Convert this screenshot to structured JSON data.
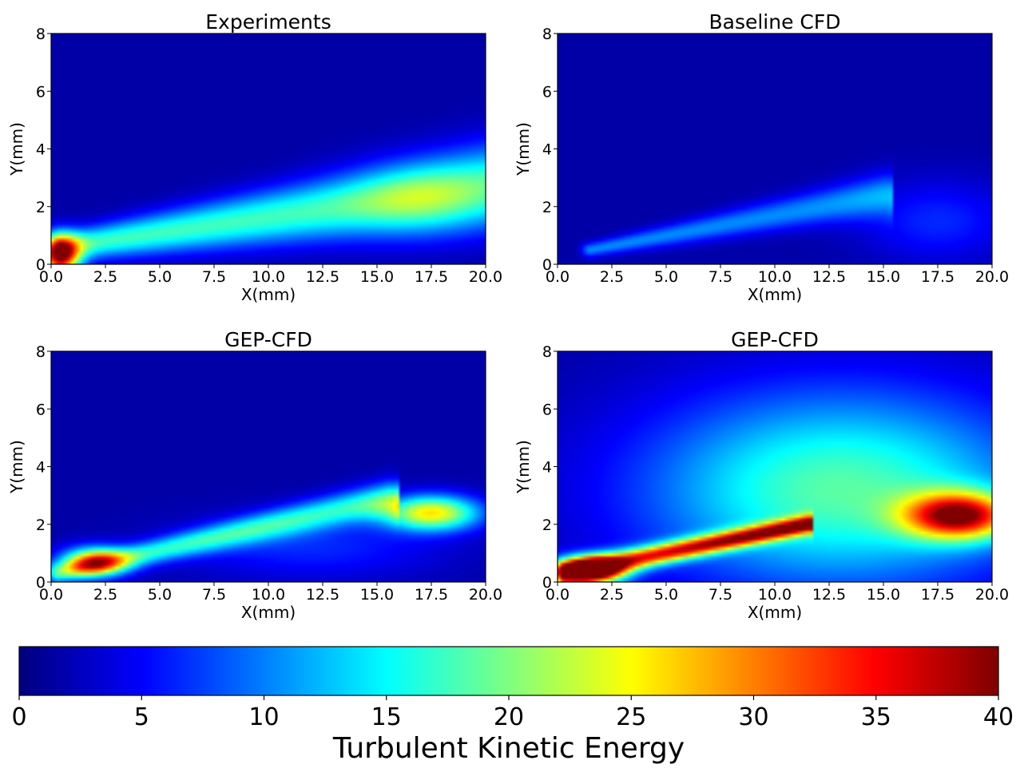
{
  "chart_data": [
    {
      "type": "heatmap",
      "title": "Experiments",
      "xlabel": "X(mm)",
      "ylabel": "Y(mm)",
      "xlim": [
        0,
        20
      ],
      "ylim": [
        0,
        8
      ],
      "x_ticks": [
        "0.0",
        "2.5",
        "5.0",
        "7.5",
        "10.0",
        "12.5",
        "15.0",
        "17.5",
        "20.0"
      ],
      "y_ticks": [
        "0",
        "2",
        "4",
        "6",
        "8"
      ],
      "field_features": [
        {
          "kind": "band",
          "x0": 0.5,
          "y0": 0.6,
          "x1": 20,
          "y1": 2.7,
          "width_start": 0.5,
          "width_end": 1.4,
          "peak": 16
        },
        {
          "kind": "blob",
          "x": 0.4,
          "y": 0.3,
          "rx": 0.9,
          "ry": 0.7,
          "peak": 33
        },
        {
          "kind": "blob",
          "x": 17,
          "y": 2.2,
          "rx": 3,
          "ry": 1.2,
          "peak": 6
        }
      ]
    },
    {
      "type": "heatmap",
      "title": "Baseline CFD",
      "xlabel": "X(mm)",
      "ylabel": "Y(mm)",
      "xlim": [
        0,
        20
      ],
      "ylim": [
        0,
        8
      ],
      "x_ticks": [
        "0.0",
        "2.5",
        "5.0",
        "7.5",
        "10.0",
        "12.5",
        "15.0",
        "17.5",
        "20.0"
      ],
      "y_ticks": [
        "0",
        "2",
        "4",
        "6",
        "8"
      ],
      "field_features": [
        {
          "kind": "band",
          "x0": 1.5,
          "y0": 0.5,
          "x1": 15,
          "y1": 2.4,
          "width_start": 0.25,
          "width_end": 0.7,
          "peak": 9
        },
        {
          "kind": "blob",
          "x": 17.5,
          "y": 1.5,
          "rx": 3.5,
          "ry": 1.4,
          "peak": 5
        }
      ]
    },
    {
      "type": "heatmap",
      "title": "GEP-CFD",
      "xlabel": "X(mm)",
      "ylabel": "Y(mm)",
      "xlim": [
        0,
        20
      ],
      "ylim": [
        0,
        8
      ],
      "x_ticks": [
        "0.0",
        "2.5",
        "5.0",
        "7.5",
        "10.0",
        "12.5",
        "15.0",
        "17.5",
        "20.0"
      ],
      "y_ticks": [
        "0",
        "2",
        "4",
        "6",
        "8"
      ],
      "field_features": [
        {
          "kind": "band",
          "x0": 0.3,
          "y0": 0.3,
          "x1": 15.5,
          "y1": 2.9,
          "width_start": 0.35,
          "width_end": 0.6,
          "peak": 14
        },
        {
          "kind": "blob",
          "x": 17.5,
          "y": 2.4,
          "rx": 2.2,
          "ry": 0.6,
          "peak": 24
        },
        {
          "kind": "blob",
          "x": 2,
          "y": 0.7,
          "rx": 1.5,
          "ry": 0.5,
          "peak": 26
        },
        {
          "kind": "blob",
          "x": 12,
          "y": 1.2,
          "rx": 6,
          "ry": 1.1,
          "peak": 5
        }
      ]
    },
    {
      "type": "heatmap",
      "title": "GEP-CFD",
      "xlabel": "X(mm)",
      "ylabel": "Y(mm)",
      "xlim": [
        0,
        20
      ],
      "ylim": [
        0,
        8
      ],
      "x_ticks": [
        "0.0",
        "2.5",
        "5.0",
        "7.5",
        "10.0",
        "12.5",
        "15.0",
        "17.5",
        "20.0"
      ],
      "y_ticks": [
        "0",
        "2",
        "4",
        "6",
        "8"
      ],
      "field_features": [
        {
          "kind": "blob",
          "x": 13,
          "y": 3.2,
          "rx": 9,
          "ry": 3.4,
          "peak": 17
        },
        {
          "kind": "band",
          "x0": 0.3,
          "y0": 0.3,
          "x1": 11.5,
          "y1": 2.0,
          "width_start": 0.4,
          "width_end": 0.3,
          "peak": 30
        },
        {
          "kind": "blob",
          "x": 18.5,
          "y": 2.3,
          "rx": 2.5,
          "ry": 0.8,
          "peak": 31
        },
        {
          "kind": "blob",
          "x": 1.5,
          "y": 0.4,
          "rx": 1.5,
          "ry": 0.45,
          "peak": 40
        }
      ]
    }
  ],
  "colorbar": {
    "label": "Turbulent Kinetic Energy",
    "min": 0,
    "max": 40,
    "ticks": [
      "0",
      "5",
      "10",
      "15",
      "20",
      "25",
      "30",
      "35",
      "40"
    ],
    "colormap": "jet"
  }
}
